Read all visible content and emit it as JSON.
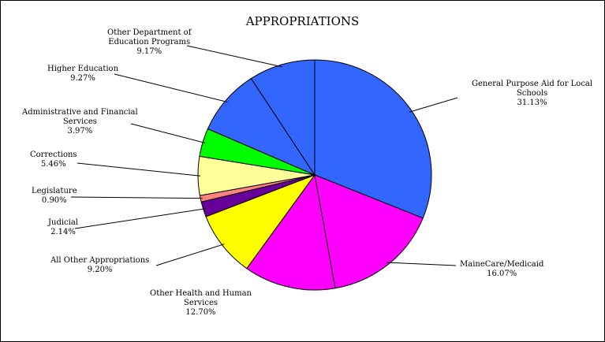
{
  "chart_data": {
    "type": "pie",
    "title": "APPROPRIATIONS",
    "start_angle_deg": 0,
    "direction": "clockwise",
    "slices": [
      {
        "label_lines": [
          "General Purpose Aid for Local",
          "Schools"
        ],
        "percent_text": "31.13%",
        "value": 31.13,
        "color": "#3366ff"
      },
      {
        "label_lines": [
          "MaineCare/Medicaid"
        ],
        "percent_text": "16.07%",
        "value": 16.07,
        "color": "#ff00ff"
      },
      {
        "label_lines": [
          "Other Health and Human",
          "Services"
        ],
        "percent_text": "12.70%",
        "value": 12.7,
        "color": "#ff00ff"
      },
      {
        "label_lines": [
          "All Other Appropriations"
        ],
        "percent_text": "9.20%",
        "value": 9.2,
        "color": "#ffff00"
      },
      {
        "label_lines": [
          "Judicial"
        ],
        "percent_text": "2.14%",
        "value": 2.14,
        "color": "#660099"
      },
      {
        "label_lines": [
          "Legislature"
        ],
        "percent_text": "0.90%",
        "value": 0.9,
        "color": "#ff8080"
      },
      {
        "label_lines": [
          "Corrections"
        ],
        "percent_text": "5.46%",
        "value": 5.46,
        "color": "#ffff99"
      },
      {
        "label_lines": [
          "Administrative and Financial",
          "Services"
        ],
        "percent_text": "3.97%",
        "value": 3.97,
        "color": "#00ff00"
      },
      {
        "label_lines": [
          "Higher Education"
        ],
        "percent_text": "9.27%",
        "value": 9.27,
        "color": "#3366ff"
      },
      {
        "label_lines": [
          "Other Department of",
          "Education Programs"
        ],
        "percent_text": "9.17%",
        "value": 9.17,
        "color": "#3366ff"
      }
    ]
  }
}
